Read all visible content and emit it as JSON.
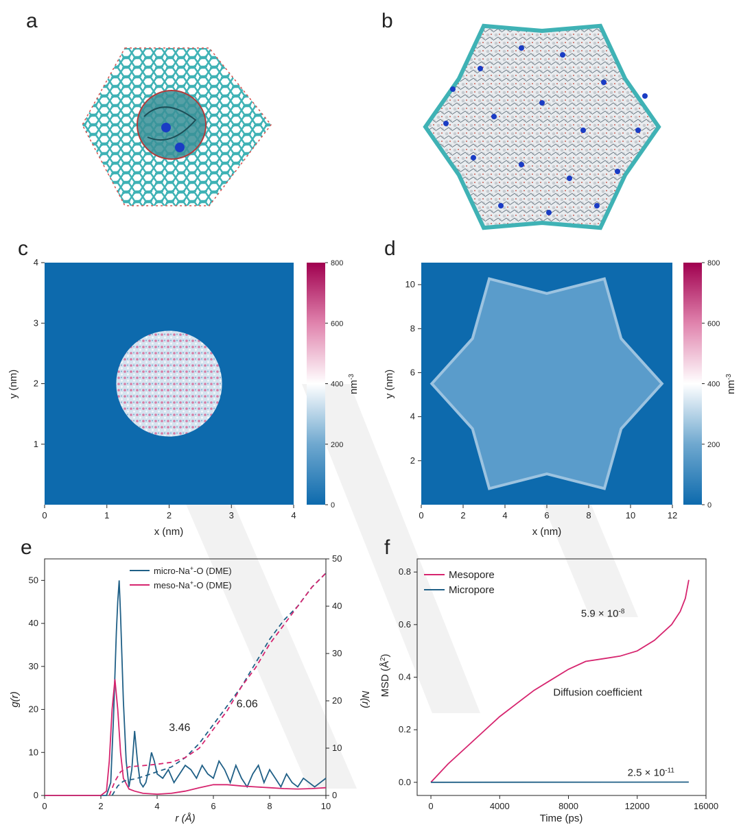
{
  "panel_labels": [
    "a",
    "b",
    "c",
    "d",
    "e",
    "f"
  ],
  "colors": {
    "micro": "#1f5f86",
    "meso": "#d6246e",
    "map_bg": "#0d6aad",
    "axis": "#222222"
  },
  "chart_data": [
    {
      "panel": "a",
      "type": "other",
      "title": "",
      "description_visible": false
    },
    {
      "panel": "b",
      "type": "other",
      "title": "",
      "description_visible": false
    },
    {
      "panel": "c",
      "type": "heatmap",
      "xlabel": "x (nm)",
      "ylabel": "y (nm)",
      "xlim": [
        0,
        4
      ],
      "ylim": [
        0,
        4
      ],
      "xticks": [
        "0",
        "1",
        "2",
        "3",
        "4"
      ],
      "yticks": [
        "1",
        "2",
        "3",
        "4"
      ],
      "colorbar_label": "nm-3",
      "colorbar_range": [
        0,
        800
      ],
      "colorbar_ticks": [
        "0",
        "200",
        "400",
        "600",
        "800"
      ],
      "region": {
        "shape": "disk",
        "center": [
          2,
          2
        ],
        "radius": 0.85
      }
    },
    {
      "panel": "d",
      "type": "heatmap",
      "xlabel": "x (nm)",
      "ylabel": "y (nm)",
      "xlim": [
        0,
        12
      ],
      "ylim": [
        0,
        11
      ],
      "xticks": [
        "0",
        "2",
        "4",
        "6",
        "8",
        "10",
        "12"
      ],
      "yticks": [
        "2",
        "4",
        "6",
        "8",
        "10"
      ],
      "colorbar_label": "nm-3",
      "colorbar_range": [
        0,
        800
      ],
      "colorbar_ticks": [
        "0",
        "200",
        "400",
        "600",
        "800"
      ],
      "region": {
        "shape": "star6",
        "center": [
          6,
          5.5
        ],
        "outer_radius": 5.5,
        "inner_radius": 4.1
      }
    },
    {
      "panel": "e",
      "type": "line",
      "xlabel": "r (Å)",
      "ylabel": "g(r)",
      "ylabel_right": "N(r)",
      "xlim": [
        0,
        10
      ],
      "ylim": [
        0,
        55
      ],
      "ylim_right": [
        0,
        50
      ],
      "xticks": [
        "0",
        "2",
        "4",
        "6",
        "8",
        "10"
      ],
      "yticks": [
        "0",
        "10",
        "20",
        "30",
        "40",
        "50"
      ],
      "yticks_right": [
        "0",
        "10",
        "20",
        "30",
        "40",
        "50"
      ],
      "legend": {
        "placement": "top-center",
        "entries": [
          "micro-Na+-O (DME)",
          "meso-Na+-O (DME)"
        ]
      },
      "annotations": [
        {
          "text": "3.46",
          "x": 4.8,
          "y": 15,
          "series": "micro"
        },
        {
          "text": "6.06",
          "x": 7.2,
          "y": 20.5,
          "series": "meso"
        }
      ],
      "series": [
        {
          "name": "micro-Na+-O (DME) g(r)",
          "color_key": "micro",
          "style": "solid",
          "axis": "left",
          "x": [
            0,
            2.2,
            2.35,
            2.45,
            2.55,
            2.6,
            2.65,
            2.7,
            2.8,
            2.9,
            3.0,
            3.1,
            3.2,
            3.3,
            3.4,
            3.5,
            3.6,
            3.7,
            3.8,
            3.9,
            4.0,
            4.2,
            4.4,
            4.6,
            4.8,
            5.0,
            5.2,
            5.4,
            5.6,
            5.8,
            6.0,
            6.2,
            6.4,
            6.6,
            6.8,
            7.0,
            7.2,
            7.4,
            7.6,
            7.8,
            8.0,
            8.2,
            8.4,
            8.6,
            8.8,
            9.0,
            9.2,
            9.4,
            9.6,
            9.8,
            10.0
          ],
          "y": [
            0,
            0,
            3,
            18,
            38,
            45,
            50,
            42,
            22,
            8,
            2,
            6,
            15,
            8,
            3,
            2,
            3,
            6,
            10,
            8,
            5,
            4,
            6,
            3,
            5,
            7,
            6,
            4,
            7,
            5,
            4,
            8,
            6,
            3,
            7,
            4,
            2,
            5,
            7,
            3,
            6,
            4,
            2,
            5,
            3,
            2,
            4,
            3,
            2,
            3,
            4
          ]
        },
        {
          "name": "meso-Na+-O (DME) g(r)",
          "color_key": "meso",
          "style": "solid",
          "axis": "left",
          "x": [
            0,
            2.0,
            2.2,
            2.3,
            2.4,
            2.5,
            2.6,
            2.7,
            2.8,
            3.0,
            3.2,
            3.5,
            4.0,
            4.5,
            5.0,
            5.5,
            6.0,
            6.5,
            7.0,
            7.5,
            8.0,
            8.5,
            9.0,
            9.5,
            10.0
          ],
          "y": [
            0,
            0,
            1,
            8,
            20,
            27,
            20,
            10,
            4,
            1.5,
            1,
            0.5,
            0.3,
            0.5,
            1,
            1.8,
            2.5,
            2.5,
            2.2,
            2,
            1.8,
            1.6,
            1.5,
            1.6,
            1.8
          ]
        },
        {
          "name": "micro-Na+-O (DME) N(r)",
          "color_key": "micro",
          "style": "dashed",
          "axis": "right",
          "x": [
            2.4,
            2.6,
            2.8,
            3.0,
            3.2,
            3.5,
            4.0,
            4.5,
            5.0,
            5.5,
            6.0,
            6.5,
            7.0,
            7.5,
            8.0,
            8.5,
            9.0,
            9.5,
            10.0
          ],
          "y": [
            0,
            2,
            3,
            3.3,
            3.46,
            4,
            5,
            6,
            8,
            11,
            15,
            19,
            23,
            28,
            33,
            37,
            40,
            44,
            47
          ]
        },
        {
          "name": "meso-Na+-O (DME) N(r)",
          "color_key": "meso",
          "style": "dashed",
          "axis": "right",
          "x": [
            2.3,
            2.5,
            2.7,
            3.0,
            3.5,
            4.0,
            4.5,
            5.0,
            5.5,
            6.0,
            6.5,
            7.0,
            7.5,
            8.0,
            8.5,
            9.0,
            9.5,
            10.0
          ],
          "y": [
            0,
            3,
            5,
            6.06,
            6.3,
            6.6,
            7,
            8,
            10,
            14,
            18,
            23,
            27,
            32,
            36,
            40,
            44,
            47
          ]
        }
      ]
    },
    {
      "panel": "f",
      "type": "line",
      "xlabel": "Time (ps)",
      "ylabel": "MSD (Å2)",
      "xlim": [
        -800,
        16000
      ],
      "ylim": [
        -0.05,
        0.85
      ],
      "xticks": [
        "0",
        "4000",
        "8000",
        "12000",
        "16000"
      ],
      "yticks": [
        "0.0",
        "0.2",
        "0.4",
        "0.6",
        "0.8"
      ],
      "legend": {
        "placement": "top-left",
        "entries": [
          "Mesopore",
          "Micropore"
        ]
      },
      "annotations": [
        {
          "text": "5.9 × 10-8",
          "x": 10000,
          "y": 0.63,
          "series": "meso"
        },
        {
          "text": "Diffusion coefficient",
          "x": 9700,
          "y": 0.33,
          "series": "none"
        },
        {
          "text": "2.5 × 10-11",
          "x": 12800,
          "y": 0.025,
          "series": "micro"
        }
      ],
      "series": [
        {
          "name": "Mesopore",
          "color_key": "meso",
          "x": [
            0,
            1000,
            2000,
            3000,
            4000,
            5000,
            6000,
            7000,
            8000,
            9000,
            10000,
            11000,
            12000,
            13000,
            14000,
            14500,
            14800,
            15000
          ],
          "y": [
            0,
            0.07,
            0.13,
            0.19,
            0.25,
            0.3,
            0.35,
            0.39,
            0.43,
            0.46,
            0.47,
            0.48,
            0.5,
            0.54,
            0.6,
            0.65,
            0.7,
            0.77
          ]
        },
        {
          "name": "Micropore",
          "color_key": "micro",
          "x": [
            0,
            15000
          ],
          "y": [
            0,
            0.001
          ]
        }
      ]
    }
  ]
}
